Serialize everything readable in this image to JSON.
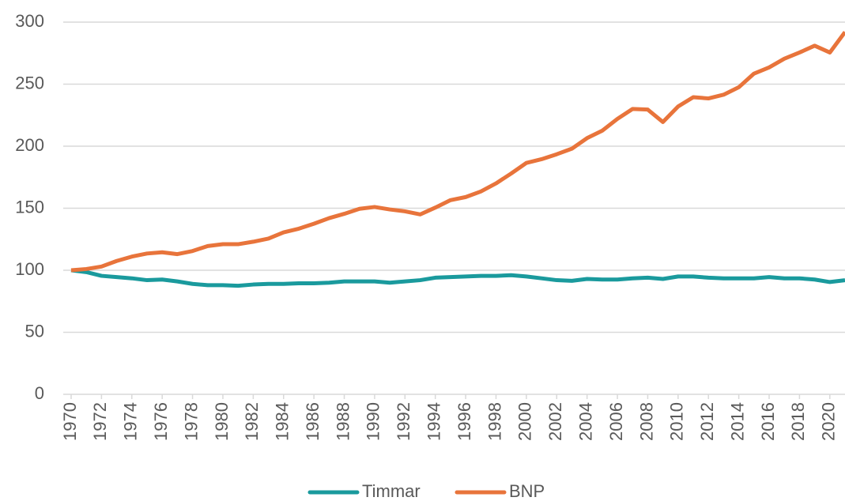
{
  "chart_data": {
    "type": "line",
    "x": [
      1970,
      1971,
      1972,
      1973,
      1974,
      1975,
      1976,
      1977,
      1978,
      1979,
      1980,
      1981,
      1982,
      1983,
      1984,
      1985,
      1986,
      1987,
      1988,
      1989,
      1990,
      1991,
      1992,
      1993,
      1994,
      1995,
      1996,
      1997,
      1998,
      1999,
      2000,
      2001,
      2002,
      2003,
      2004,
      2005,
      2006,
      2007,
      2008,
      2009,
      2010,
      2011,
      2012,
      2013,
      2014,
      2015,
      2016,
      2017,
      2018,
      2019,
      2020,
      2021
    ],
    "series": [
      {
        "name": "Timmar",
        "color": "#1a9a9d",
        "values": [
          100,
          98.5,
          95.5,
          94.5,
          93.5,
          92,
          92.5,
          91,
          89,
          88,
          88,
          87.5,
          88.5,
          89,
          89,
          89.5,
          89.5,
          90,
          91,
          91,
          91,
          90,
          91,
          92,
          94,
          94.5,
          95,
          95.5,
          95.5,
          96,
          95,
          93.5,
          92,
          91.5,
          93,
          92.5,
          92.5,
          93.5,
          94,
          93,
          95,
          95,
          94,
          93.5,
          93.5,
          93.5,
          94.5,
          93.5,
          93.5,
          92.5,
          90.5,
          92
        ]
      },
      {
        "name": "BNP",
        "color": "#e8743b",
        "values": [
          100,
          101,
          103,
          107.5,
          111,
          113.5,
          114.5,
          113,
          115.5,
          119.5,
          121,
          121,
          123,
          125.5,
          130.5,
          133.5,
          137.5,
          142,
          145.5,
          149.5,
          151,
          149,
          147.5,
          145,
          150.5,
          156.5,
          159,
          163.5,
          170,
          178,
          186.5,
          189.5,
          193.5,
          198,
          206.5,
          212.5,
          222,
          230,
          229.5,
          219.5,
          232,
          239.5,
          238.5,
          241.5,
          247.5,
          258.5,
          263.5,
          270.5,
          275.5,
          281,
          275.5,
          292
        ]
      }
    ],
    "xlim": [
      1970,
      2021
    ],
    "xticks": [
      1970,
      1972,
      1974,
      1976,
      1978,
      1980,
      1982,
      1984,
      1986,
      1988,
      1990,
      1992,
      1994,
      1996,
      1998,
      2000,
      2002,
      2004,
      2006,
      2008,
      2010,
      2012,
      2014,
      2016,
      2018,
      2020
    ],
    "ylim": [
      0,
      300
    ],
    "yticks": [
      0,
      50,
      100,
      150,
      200,
      250,
      300
    ],
    "grid": true,
    "legend": "bottom"
  }
}
